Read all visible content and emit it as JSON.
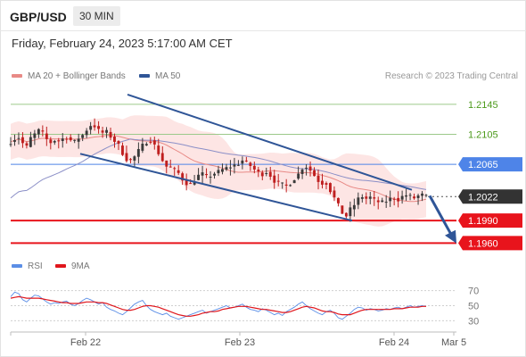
{
  "header": {
    "pair": "GBP/USD",
    "timeframe": "30 MIN",
    "datetime": "Friday, February 24, 2023 5:17:00 AM CET"
  },
  "legend": {
    "ma20_label": "MA 20 + Bollinger Bands",
    "ma50_label": "MA 50",
    "copyright": "Research © 2023 Trading Central",
    "rsi_label": "RSI",
    "ma9_label": "9MA"
  },
  "colors": {
    "bull": "#3a3a3a",
    "bear": "#bf1f1f",
    "bollinger_fill": "#fde0df",
    "ma20": "#e88a86",
    "ma50": "#8b8fc7",
    "channel": "#2f5597",
    "green_level": "#9cc98a",
    "green_text": "#4c9a1b",
    "blue_level": "#4e84e8",
    "red_level": "#e8141c",
    "current_tag": "#333333",
    "rsi": "#5b8ee6",
    "rsi_ma": "#e0161c"
  },
  "chart_data": [
    {
      "type": "candlestick",
      "title": "GBP/USD 30 MIN",
      "x_ticks": [
        "Feb 22",
        "Feb 23",
        "Feb 24",
        "Mar 5"
      ],
      "y_range": [
        1.1945,
        1.2165
      ],
      "levels": [
        {
          "value": 1.2145,
          "label": "1.2145",
          "kind": "resistance"
        },
        {
          "value": 1.2105,
          "label": "1.2105",
          "kind": "resistance"
        },
        {
          "value": 1.2065,
          "label": "1.2065",
          "kind": "pivot"
        },
        {
          "value": 1.2022,
          "label": "1.2022",
          "kind": "current"
        },
        {
          "value": 1.199,
          "label": "1.1990",
          "kind": "support"
        },
        {
          "value": 1.196,
          "label": "1.1960",
          "kind": "support"
        }
      ],
      "price_path": [
        1.2095,
        1.2099,
        1.2101,
        1.2093,
        1.2088,
        1.21,
        1.2105,
        1.211,
        1.2106,
        1.2098,
        1.2094,
        1.2097,
        1.2096,
        1.2099,
        1.2101,
        1.2097,
        1.2095,
        1.21,
        1.2104,
        1.2111,
        1.2117,
        1.2116,
        1.211,
        1.2107,
        1.2108,
        1.2102,
        1.2096,
        1.209,
        1.208,
        1.2072,
        1.207,
        1.2075,
        1.2083,
        1.209,
        1.2095,
        1.2097,
        1.209,
        1.208,
        1.207,
        1.2062,
        1.206,
        1.2057,
        1.2053,
        1.2045,
        1.204,
        1.2038,
        1.2044,
        1.205,
        1.2052,
        1.2048,
        1.205,
        1.2053,
        1.2055,
        1.2058,
        1.206,
        1.2062,
        1.2064,
        1.2066,
        1.207,
        1.2067,
        1.2063,
        1.2058,
        1.2054,
        1.2052,
        1.2055,
        1.205,
        1.2043,
        1.204,
        1.2038,
        1.2036,
        1.204,
        1.2046,
        1.2052,
        1.206,
        1.2062,
        1.2057,
        1.205,
        1.2043,
        1.204,
        1.204,
        1.203,
        1.202,
        1.201,
        1.2,
        1.1996,
        1.2005,
        1.2011,
        1.2019,
        1.2022,
        1.2019,
        1.2021,
        1.2017,
        1.2015,
        1.2014,
        1.2016,
        1.2019,
        1.202,
        1.2018,
        1.2022,
        1.2024,
        1.2022,
        1.202,
        1.2023,
        1.2024,
        1.2022
      ]
    },
    {
      "type": "line",
      "title": "RSI",
      "y_ticks": [
        70,
        50,
        30
      ],
      "y_range": [
        15,
        85
      ],
      "series": [
        {
          "name": "RSI",
          "values": [
            62,
            68,
            66,
            58,
            55,
            60,
            64,
            63,
            59,
            55,
            52,
            54,
            53,
            55,
            56,
            52,
            50,
            53,
            57,
            60,
            58,
            55,
            52,
            54,
            48,
            45,
            43,
            40,
            38,
            42,
            47,
            52,
            55,
            57,
            50,
            45,
            42,
            40,
            38,
            40,
            36,
            34,
            32,
            34,
            36,
            38,
            40,
            42,
            44,
            40,
            42,
            44,
            46,
            48,
            50,
            47,
            48,
            50,
            52,
            48,
            45,
            44,
            42,
            46,
            44,
            41,
            38,
            40,
            37,
            42,
            45,
            48,
            52,
            55,
            50,
            46,
            43,
            40,
            38,
            42,
            44,
            40,
            34,
            32,
            36,
            40,
            45,
            48,
            47,
            44,
            46,
            45,
            43,
            44,
            46,
            45,
            47,
            48,
            46,
            48,
            50,
            48,
            49,
            50,
            49
          ]
        },
        {
          "name": "9MA",
          "values": [
            60,
            61,
            62,
            61,
            60,
            60,
            60,
            60,
            59,
            58,
            57,
            56,
            55,
            54,
            54,
            53,
            53,
            53,
            54,
            55,
            55,
            55,
            54,
            54,
            53,
            51,
            49,
            47,
            45,
            44,
            44,
            45,
            47,
            49,
            50,
            50,
            49,
            48,
            46,
            44,
            42,
            40,
            38,
            37,
            36,
            36,
            37,
            38,
            40,
            41,
            42,
            42,
            43,
            45,
            46,
            47,
            48,
            49,
            49,
            49,
            48,
            47,
            46,
            45,
            45,
            44,
            43,
            42,
            41,
            41,
            42,
            44,
            46,
            48,
            49,
            48,
            47,
            45,
            43,
            42,
            42,
            41,
            39,
            38,
            38,
            38,
            40,
            42,
            44,
            45,
            45,
            45,
            45,
            45,
            45,
            45,
            46,
            46,
            46,
            47,
            48,
            48,
            48,
            49,
            49
          ]
        }
      ]
    }
  ]
}
